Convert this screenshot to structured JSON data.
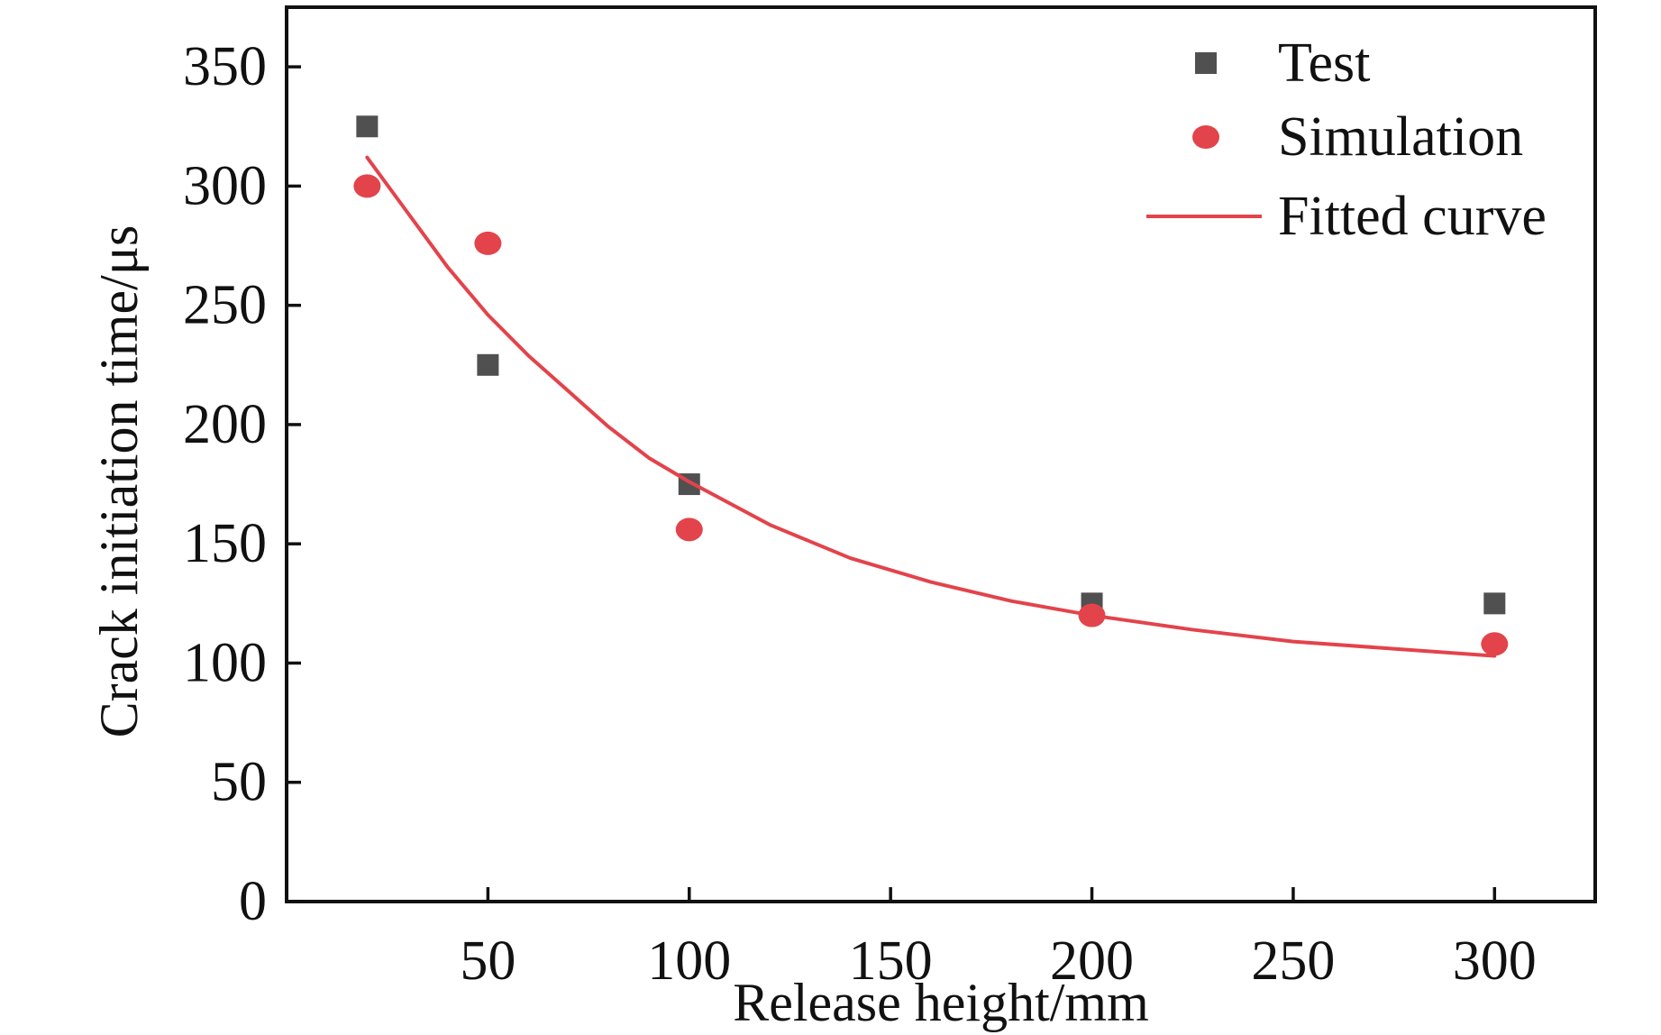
{
  "chart_data": {
    "type": "scatter",
    "title": "",
    "xlabel": "Release height/mm",
    "ylabel": "Crack initiation time/μs",
    "xlim": [
      0,
      325
    ],
    "ylim": [
      0,
      375
    ],
    "xticks": [
      50,
      100,
      150,
      200,
      250,
      300
    ],
    "yticks": [
      0,
      50,
      100,
      150,
      200,
      250,
      300,
      350
    ],
    "xtick_labels": [
      "50",
      "100",
      "150",
      "200",
      "250",
      "300"
    ],
    "ytick_labels": [
      "0",
      "50",
      "100",
      "150",
      "200",
      "250",
      "300",
      "350"
    ],
    "grid": false,
    "legend_position": "top-right",
    "series": [
      {
        "name": "Test",
        "kind": "scatter",
        "marker": "square",
        "color": "#505050",
        "x": [
          20,
          50,
          100,
          200,
          300
        ],
        "y": [
          325,
          225,
          175,
          125,
          125
        ]
      },
      {
        "name": "Simulation",
        "kind": "scatter",
        "marker": "circle",
        "color": "#e3434b",
        "x": [
          20,
          50,
          100,
          200,
          300
        ],
        "y": [
          300,
          276,
          156,
          120,
          108
        ]
      },
      {
        "name": "Fitted curve",
        "kind": "line",
        "color": "#e3434b",
        "x": [
          20,
          30,
          40,
          50,
          60,
          70,
          80,
          90,
          100,
          120,
          140,
          160,
          180,
          200,
          225,
          250,
          275,
          300
        ],
        "y": [
          312,
          289,
          266,
          246,
          229,
          214,
          199,
          186,
          176,
          158,
          144,
          134,
          126,
          120,
          114,
          109,
          106,
          103
        ]
      }
    ]
  }
}
